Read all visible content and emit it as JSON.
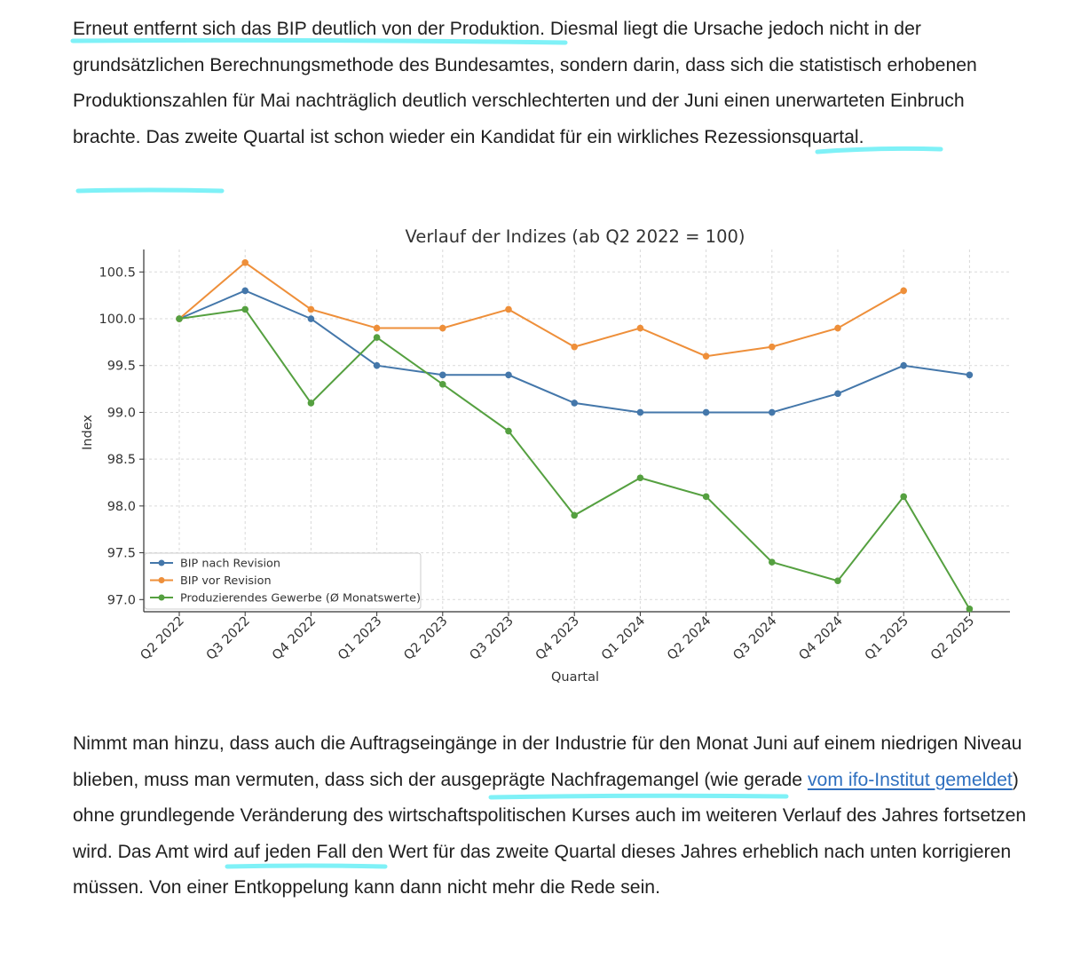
{
  "article": {
    "p1": {
      "s1": "Erneut entfernt sich das BIP deutlich von der Produktion.",
      "s2": " Diesmal liegt die Ursache jedoch nicht in der grundsätzlichen Berechnungsmethode des Bundesamtes, sondern darin, dass sich die statistisch erhobenen Produktionszahlen für Mai nachträglich deutlich verschlechterten und der Juni einen unerwarteten Einbruch brachte. Das zweite Quartal ist schon wieder ein Kandidat für ",
      "s3": "ein wirkliches Rezessionsquartal",
      "s4": "."
    },
    "p2": {
      "s1": "Nimmt man hinzu, dass auch die Auftragseingänge in der Industrie für den Monat Juni auf einem niedrigen Niveau blieben, muss man vermuten, dass sich ",
      "s2": "der ausgeprägte Nachfragemangel",
      "s3": " (wie gerade ",
      "link": "vom ifo-Institut gemeldet",
      "s4": ") ohne grundlegende Veränderung des wirtschaftspolitischen Kurses auch im weiteren Verlauf des Jahres ",
      "s5": "fortsetzen wird.",
      "s6": " Das Amt wird auf jeden Fall den Wert für das zweite Quartal dieses Jahres erheblich nach unten korrigieren müssen. Von einer Entkoppelung kann dann nicht mehr die Rede sein."
    }
  },
  "colors": {
    "highlight": "#7ff1f7",
    "link": "#2e6fbf",
    "blue": "#4477aa",
    "orange": "#ee8f3a",
    "green": "#55a040"
  },
  "chart_data": {
    "type": "line",
    "title": "Verlauf der Indizes (ab Q2 2022 = 100)",
    "xlabel": "Quartal",
    "ylabel": "Index",
    "categories": [
      "Q2 2022",
      "Q3 2022",
      "Q4 2022",
      "Q1 2023",
      "Q2 2023",
      "Q3 2023",
      "Q4 2023",
      "Q1 2024",
      "Q2 2024",
      "Q3 2024",
      "Q4 2024",
      "Q1 2025",
      "Q2 2025"
    ],
    "ylim": [
      96.87,
      100.74
    ],
    "yticks": [
      "97.0",
      "97.5",
      "98.0",
      "98.5",
      "99.0",
      "99.5",
      "100.0",
      "100.5"
    ],
    "grid": true,
    "legend_position": "lower-left",
    "series": [
      {
        "name": "BIP nach Revision",
        "color": "#4477aa",
        "values": [
          100.0,
          100.3,
          100.0,
          99.5,
          99.4,
          99.4,
          99.1,
          99.0,
          99.0,
          99.0,
          99.2,
          99.5,
          99.4
        ]
      },
      {
        "name": "BIP vor Revision",
        "color": "#ee8f3a",
        "values": [
          100.0,
          100.6,
          100.1,
          99.9,
          99.9,
          100.1,
          99.7,
          99.9,
          99.6,
          99.7,
          99.9,
          100.3,
          null
        ]
      },
      {
        "name": "Produzierendes Gewerbe (Ø Monatswerte)",
        "color": "#55a040",
        "values": [
          100.0,
          100.1,
          99.1,
          99.8,
          99.3,
          98.8,
          97.9,
          98.3,
          98.1,
          97.4,
          97.2,
          98.1,
          96.9
        ]
      }
    ]
  }
}
